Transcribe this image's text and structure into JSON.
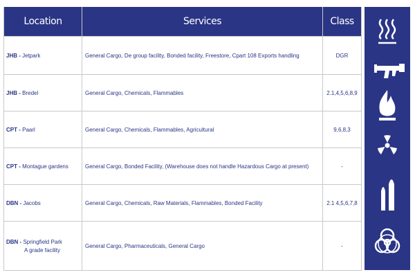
{
  "table": {
    "headers": [
      "Location",
      "Services",
      "Class"
    ],
    "rows": [
      {
        "code": "JHB -",
        "name": [
          "Jetpark"
        ],
        "services": "General Cargo, De group facility, Bonded facility, Freestore, Cpart 108 Exports handling",
        "class": "DGR"
      },
      {
        "code": "JHB -",
        "name": [
          "Bredel"
        ],
        "services": "General Cargo, Chemicals, Flammables",
        "class": "2.1,4,5,6,8,9"
      },
      {
        "code": "CPT -",
        "name": [
          "Paarl"
        ],
        "services": "General Cargo, Chemicals, Flammables, Agricultural",
        "class": "9,6,8,3"
      },
      {
        "code": "CPT -",
        "name": [
          "Montague gardens"
        ],
        "services": "General Cargo, Bonded Facility, (Warehouse does not handle Hazardous Cargo at present)",
        "class": "-"
      },
      {
        "code": "DBN -",
        "name": [
          "Jacobs"
        ],
        "services": "General Cargo, Chemicals, Raw Materials, Flammables, Bonded Facility",
        "class": "2.1 4,5,6,7,8"
      },
      {
        "code": "DBN -",
        "name": [
          "Springfield Park",
          "A grade facility"
        ],
        "services": "General Cargo, Pharmaceuticals, General Cargo",
        "class": "-"
      }
    ]
  }
}
